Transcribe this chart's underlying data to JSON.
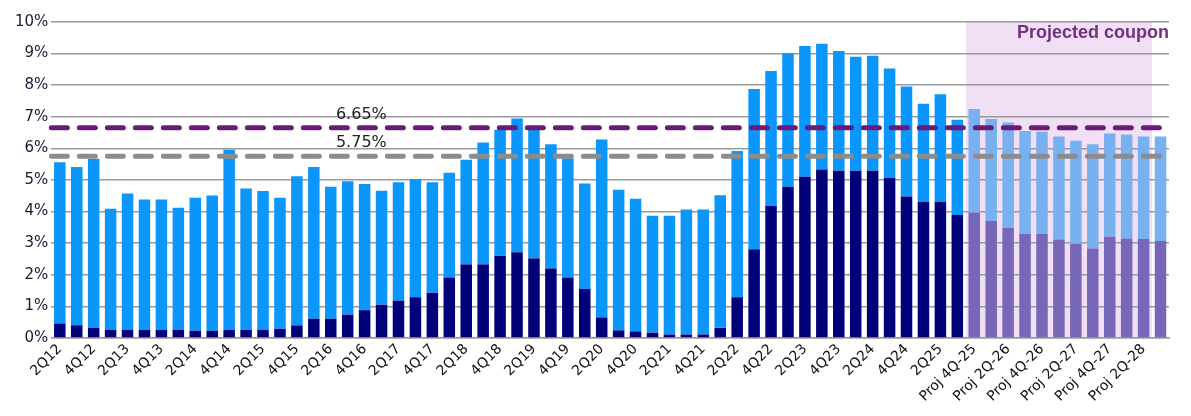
{
  "chart_data": {
    "type": "bar",
    "stacked": true,
    "categories": [
      "2Q12",
      null,
      "4Q12",
      null,
      "2Q13",
      null,
      "4Q13",
      null,
      "2Q14",
      null,
      "4Q14",
      null,
      "2Q15",
      null,
      "4Q15",
      null,
      "2Q16",
      null,
      "4Q16",
      null,
      "2Q17",
      null,
      "4Q17",
      null,
      "2Q18",
      null,
      "4Q18",
      null,
      "2Q19",
      null,
      "4Q19",
      null,
      "2Q20",
      null,
      "4Q20",
      null,
      "2Q21",
      null,
      "4Q21",
      null,
      "2Q22",
      null,
      "4Q22",
      null,
      "2Q23",
      null,
      "4Q23",
      null,
      "2Q24",
      null,
      "4Q24",
      null,
      "2Q25",
      null,
      "Proj 4Q-25",
      null,
      "Proj 2Q-26",
      null,
      "Proj 4Q-26",
      null,
      "Proj 2Q-27",
      null,
      "Proj 4Q-27",
      null,
      "Proj 2Q-28",
      null
    ],
    "series": [
      {
        "values": [
          0.46,
          0.4,
          0.32,
          0.26,
          0.26,
          0.25,
          0.25,
          0.25,
          0.23,
          0.23,
          0.25,
          0.25,
          0.26,
          0.29,
          0.4,
          0.61,
          0.61,
          0.74,
          0.88,
          1.05,
          1.18,
          1.29,
          1.43,
          1.91,
          2.33,
          2.33,
          2.6,
          2.71,
          2.52,
          2.2,
          1.91,
          1.55,
          0.65,
          0.24,
          0.21,
          0.17,
          0.11,
          0.11,
          0.11,
          0.32,
          1.29,
          2.81,
          4.18,
          4.79,
          5.1,
          5.33,
          5.29,
          5.29,
          5.29,
          5.06,
          4.48,
          4.31,
          4.31,
          3.89,
          3.97,
          3.7,
          3.49,
          3.3,
          3.29,
          3.12,
          2.98,
          2.83,
          3.2,
          3.15,
          3.13,
          3.07
        ],
        "colors": [
          "#000078",
          "#000078",
          "#000078",
          "#000078",
          "#000078",
          "#000078",
          "#000078",
          "#000078",
          "#000078",
          "#000078",
          "#000078",
          "#000078",
          "#000078",
          "#000078",
          "#000078",
          "#000078",
          "#000078",
          "#000078",
          "#000078",
          "#000078",
          "#000078",
          "#000078",
          "#000078",
          "#000078",
          "#000078",
          "#000078",
          "#000078",
          "#000078",
          "#000078",
          "#000078",
          "#000078",
          "#000078",
          "#000078",
          "#000078",
          "#000078",
          "#000078",
          "#000078",
          "#000078",
          "#000078",
          "#000078",
          "#000078",
          "#000078",
          "#000078",
          "#000078",
          "#000078",
          "#000078",
          "#000078",
          "#000078",
          "#000078",
          "#000078",
          "#000078",
          "#000078",
          "#000078",
          "#000078",
          "#7866b8",
          "#7866b8",
          "#7866b8",
          "#7866b8",
          "#7866b8",
          "#7866b8",
          "#7866b8",
          "#7866b8",
          "#7866b8",
          "#7866b8",
          "#7866b8",
          "#7866b8"
        ]
      },
      {
        "values": [
          5.1,
          5.01,
          5.35,
          3.83,
          4.31,
          4.13,
          4.13,
          3.87,
          4.21,
          4.28,
          5.71,
          4.48,
          4.39,
          4.15,
          4.72,
          4.8,
          4.18,
          4.22,
          3.99,
          3.61,
          3.75,
          3.73,
          3.5,
          3.32,
          3.31,
          3.86,
          3.99,
          4.24,
          4.12,
          3.93,
          3.78,
          3.34,
          5.63,
          4.45,
          4.2,
          3.7,
          3.76,
          3.96,
          3.96,
          4.2,
          4.63,
          5.07,
          4.27,
          4.22,
          4.14,
          3.98,
          3.79,
          3.61,
          3.64,
          3.47,
          3.48,
          3.1,
          3.4,
          3.02,
          3.28,
          3.23,
          3.33,
          3.25,
          3.24,
          3.26,
          3.26,
          3.3,
          3.27,
          3.29,
          3.25,
          3.31
        ],
        "colors": [
          "#0a96fa",
          "#0a96fa",
          "#0a96fa",
          "#0a96fa",
          "#0a96fa",
          "#0a96fa",
          "#0a96fa",
          "#0a96fa",
          "#0a96fa",
          "#0a96fa",
          "#0a96fa",
          "#0a96fa",
          "#0a96fa",
          "#0a96fa",
          "#0a96fa",
          "#0a96fa",
          "#0a96fa",
          "#0a96fa",
          "#0a96fa",
          "#0a96fa",
          "#0a96fa",
          "#0a96fa",
          "#0a96fa",
          "#0a96fa",
          "#0a96fa",
          "#0a96fa",
          "#0a96fa",
          "#0a96fa",
          "#0a96fa",
          "#0a96fa",
          "#0a96fa",
          "#0a96fa",
          "#0a96fa",
          "#0a96fa",
          "#0a96fa",
          "#0a96fa",
          "#0a96fa",
          "#0a96fa",
          "#0a96fa",
          "#0a96fa",
          "#0a96fa",
          "#0a96fa",
          "#0a96fa",
          "#0a96fa",
          "#0a96fa",
          "#0a96fa",
          "#0a96fa",
          "#0a96fa",
          "#0a96fa",
          "#0a96fa",
          "#0a96fa",
          "#0a96fa",
          "#0a96fa",
          "#0a96fa",
          "#78b0f0",
          "#78b0f0",
          "#78b0f0",
          "#78b0f0",
          "#78b0f0",
          "#78b0f0",
          "#78b0f0",
          "#78b0f0",
          "#78b0f0",
          "#78b0f0",
          "#78b0f0",
          "#78b0f0"
        ]
      }
    ],
    "ylim": [
      0,
      10
    ],
    "yticks": [
      {
        "value": 0,
        "label": "0%"
      },
      {
        "value": 1,
        "label": "1%"
      },
      {
        "value": 2,
        "label": "2%"
      },
      {
        "value": 3,
        "label": "3%"
      },
      {
        "value": 4,
        "label": "4%"
      },
      {
        "value": 5,
        "label": "5%"
      },
      {
        "value": 6,
        "label": "6%"
      },
      {
        "value": 7,
        "label": "7%"
      },
      {
        "value": 8,
        "label": "8%"
      },
      {
        "value": 9,
        "label": "9%"
      },
      {
        "value": 10,
        "label": "10%"
      }
    ],
    "grid": "y",
    "legend": false,
    "ref_lines": [
      {
        "axis": "y",
        "value": 6.65,
        "label": "6.65%",
        "color": "#6a1b7a",
        "line_style": "dashed"
      },
      {
        "axis": "y",
        "value": 5.75,
        "label": "5.75%",
        "color": "#8c8c8c",
        "line_style": "dashed"
      }
    ],
    "bands": [
      {
        "axis": "x",
        "from": "Proj 4Q-25",
        "to": "Proj 2Q-28",
        "label": "Projected coupon",
        "color": "#f1dff5"
      }
    ]
  }
}
